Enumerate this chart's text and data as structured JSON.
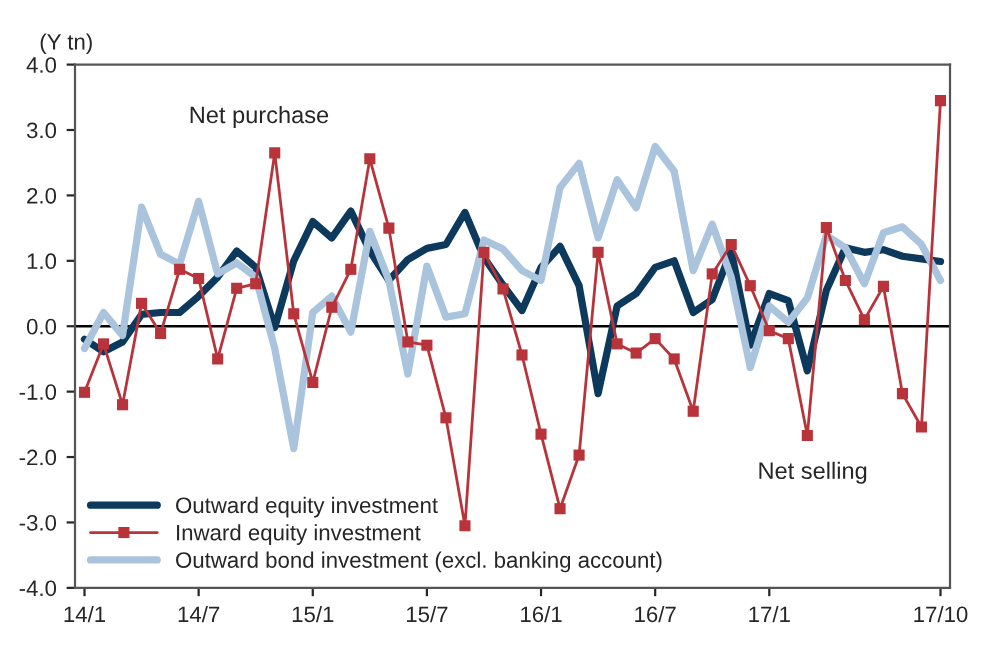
{
  "chart_data": {
    "type": "line",
    "ylabel": "(Y tn)",
    "categories": [
      "14/1",
      null,
      null,
      null,
      null,
      null,
      "14/7",
      null,
      null,
      null,
      null,
      null,
      "15/1",
      null,
      null,
      null,
      null,
      null,
      "15/7",
      null,
      null,
      null,
      null,
      null,
      "16/1",
      null,
      null,
      null,
      null,
      null,
      "16/7",
      null,
      null,
      null,
      null,
      null,
      "17/1",
      null,
      null,
      null,
      null,
      null,
      null,
      null,
      null,
      "17/10"
    ],
    "series": [
      {
        "name": "Outward equity investment",
        "color": "#0d3a5c",
        "marker": "none",
        "values": [
          -0.2,
          -0.39,
          -0.24,
          0.18,
          0.21,
          0.21,
          0.46,
          0.75,
          1.15,
          0.9,
          -0.02,
          1.0,
          1.6,
          1.35,
          1.76,
          1.15,
          0.7,
          1.02,
          1.19,
          1.25,
          1.74,
          1.05,
          0.63,
          0.24,
          0.9,
          1.22,
          0.62,
          -1.03,
          0.31,
          0.5,
          0.9,
          1.0,
          0.21,
          0.41,
          1.15,
          -0.29,
          0.5,
          0.39,
          -0.68,
          0.55,
          1.2,
          1.13,
          1.17,
          1.07,
          1.03,
          0.99
        ]
      },
      {
        "name": "Inward equity investment",
        "color": "#b8333a",
        "marker": "square",
        "values": [
          -1.01,
          -0.27,
          -1.2,
          0.35,
          -0.11,
          0.87,
          0.73,
          -0.5,
          0.58,
          0.65,
          2.65,
          0.19,
          -0.86,
          0.29,
          0.87,
          2.56,
          1.5,
          -0.24,
          -0.29,
          -1.4,
          -3.05,
          1.13,
          0.57,
          -0.44,
          -1.65,
          -2.79,
          -1.97,
          1.13,
          -0.27,
          -0.41,
          -0.19,
          -0.5,
          -1.3,
          0.8,
          1.25,
          0.62,
          -0.07,
          -0.19,
          -1.67,
          1.51,
          0.7,
          0.1,
          0.61,
          -1.03,
          -1.54,
          3.45
        ]
      },
      {
        "name": "Outward bond investment (excl. banking account)",
        "color": "#a9c4dc",
        "marker": "none",
        "values": [
          -0.34,
          0.21,
          -0.14,
          1.82,
          1.1,
          0.95,
          1.91,
          0.8,
          0.97,
          0.75,
          -0.34,
          -1.87,
          0.21,
          0.46,
          -0.09,
          1.45,
          0.7,
          -0.73,
          0.92,
          0.14,
          0.19,
          1.32,
          1.18,
          0.85,
          0.7,
          2.12,
          2.49,
          1.35,
          2.24,
          1.81,
          2.75,
          2.37,
          0.85,
          1.56,
          0.75,
          -0.63,
          0.31,
          0.06,
          0.43,
          1.39,
          1.2,
          0.65,
          1.43,
          1.52,
          1.25,
          0.7
        ]
      }
    ],
    "ylim": [
      -4,
      4
    ],
    "yticks": [
      {
        "value": -4,
        "label": "-4.0"
      },
      {
        "value": -3,
        "label": "-3.0"
      },
      {
        "value": -2,
        "label": "-2.0"
      },
      {
        "value": -1,
        "label": "-1.0"
      },
      {
        "value": 0,
        "label": "0.0"
      },
      {
        "value": 1,
        "label": "1.0"
      },
      {
        "value": 2,
        "label": "2.0"
      },
      {
        "value": 3,
        "label": "3.0"
      },
      {
        "value": 4,
        "label": "4.0"
      }
    ],
    "ref_lines": [
      {
        "axis": "y",
        "value": 0,
        "color": "#000000"
      }
    ],
    "annotations": [
      "Net purchase",
      "Net selling"
    ],
    "grid": false,
    "legend": "bottom left"
  }
}
